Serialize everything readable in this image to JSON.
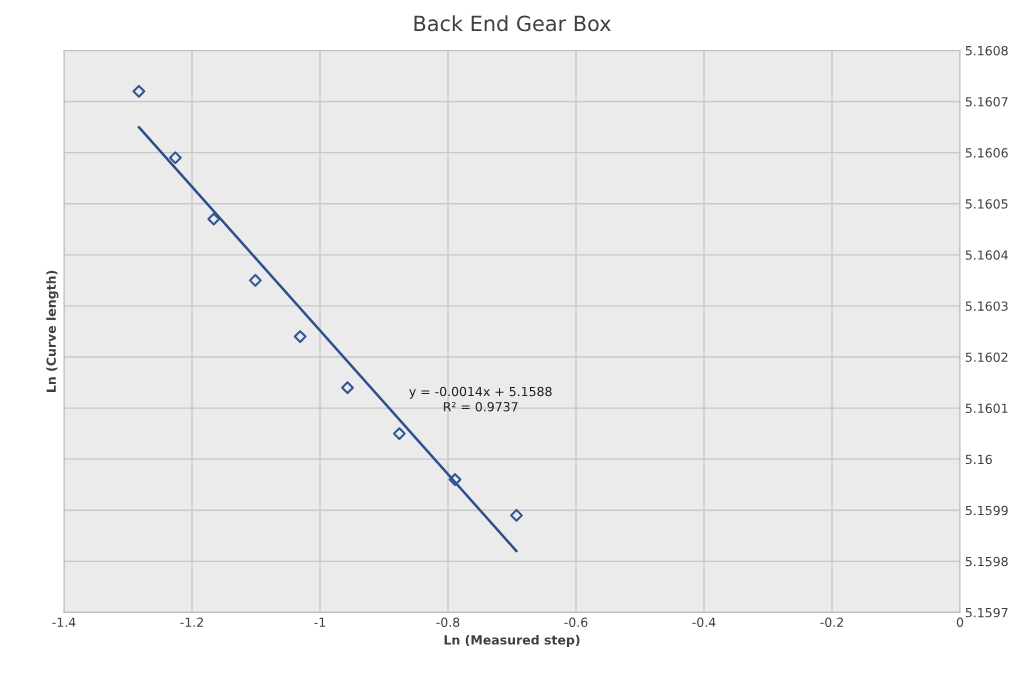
{
  "chart_data": {
    "type": "scatter",
    "title": "Back End Gear Box",
    "xlabel": "Ln (Measured step)",
    "ylabel": "Ln (Curve length)",
    "series": [
      {
        "color": "#2f5597",
        "marker": "diamond",
        "x": [
          -1.283,
          -1.226,
          -1.166,
          -1.101,
          -1.031,
          -0.957,
          -0.876,
          -0.789,
          -0.693
        ],
        "values": [
          5.16072,
          5.16059,
          5.16047,
          5.16035,
          5.16024,
          5.16014,
          5.16005,
          5.15996,
          5.15989
        ]
      },
      {
        "type": "line",
        "color": "#2e4f8f",
        "marker": "none",
        "line_style": "solid",
        "x": [
          -1.283,
          -0.693
        ],
        "values": [
          5.16065,
          5.15982
        ]
      }
    ],
    "annotations": [
      "y = -0.0014x + 5.1588",
      "R² = 0.9737"
    ],
    "xlim": [
      -1.4,
      0
    ],
    "xticks": [
      -1.4,
      -1.2,
      -1,
      -0.8,
      -0.6,
      -0.4,
      -0.2,
      0
    ],
    "ylim": [
      5.1597,
      5.1608
    ],
    "yticks": [
      5.1597,
      5.1598,
      5.1599,
      5.16,
      5.1601,
      5.1602,
      5.1603,
      5.1604,
      5.1605,
      5.1606,
      5.1607,
      5.1608
    ],
    "grid": true,
    "legend": false
  }
}
